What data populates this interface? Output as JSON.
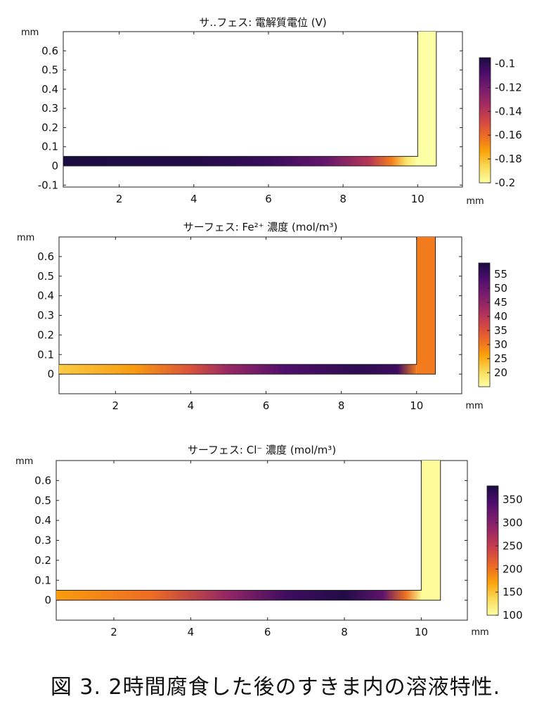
{
  "caption": "図 3. 2時間腐食した後のすきま内の溶液特性.",
  "chart_data": [
    {
      "type": "heatmap",
      "title": "サ‥フェス: 電解質電位 (V)",
      "xlabel": "mm",
      "ylabel": "mm",
      "xticks": [
        2,
        4,
        6,
        8,
        10
      ],
      "yticks": [
        -0.1,
        0,
        0.1,
        0.2,
        0.3,
        0.4,
        0.5,
        0.6
      ],
      "xlim": [
        0.5,
        11.2
      ],
      "ylim": [
        -0.11,
        0.7
      ],
      "colorbar": {
        "min": -0.2,
        "max": -0.095,
        "ticks": [
          -0.1,
          -0.12,
          -0.14,
          -0.16,
          -0.18,
          -0.2
        ]
      },
      "geometry": {
        "channel_x": [
          0.5,
          10.0
        ],
        "channel_y": [
          0,
          0.05
        ],
        "vertical_x": [
          10.0,
          10.5
        ],
        "vertical_y": [
          0,
          0.7
        ]
      },
      "channel_profile": [
        {
          "x": 0.5,
          "value": -0.095
        },
        {
          "x": 4.0,
          "value": -0.097
        },
        {
          "x": 6.0,
          "value": -0.103
        },
        {
          "x": 7.5,
          "value": -0.115
        },
        {
          "x": 8.7,
          "value": -0.14
        },
        {
          "x": 9.3,
          "value": -0.165
        },
        {
          "x": 9.7,
          "value": -0.19
        },
        {
          "x": 10.0,
          "value": -0.2
        }
      ],
      "vertical_value": -0.2
    },
    {
      "type": "heatmap",
      "title": "サーフェス: Fe²⁺ 濃度 (mol/m³)",
      "xlabel": "mm",
      "ylabel": "mm",
      "xticks": [
        2,
        4,
        6,
        8,
        10
      ],
      "yticks": [
        0,
        0.1,
        0.2,
        0.3,
        0.4,
        0.5,
        0.6
      ],
      "xlim": [
        0.5,
        11.2
      ],
      "ylim": [
        -0.1,
        0.7
      ],
      "colorbar": {
        "min": 15,
        "max": 59,
        "ticks": [
          55,
          50,
          45,
          40,
          35,
          30,
          25,
          20
        ]
      },
      "geometry": {
        "channel_x": [
          0.5,
          10.0
        ],
        "channel_y": [
          0,
          0.05
        ],
        "vertical_x": [
          10.0,
          10.5
        ],
        "vertical_y": [
          0,
          0.7
        ]
      },
      "channel_profile": [
        {
          "x": 0.5,
          "value": 22
        },
        {
          "x": 2.5,
          "value": 27
        },
        {
          "x": 4.0,
          "value": 35
        },
        {
          "x": 5.0,
          "value": 44
        },
        {
          "x": 6.5,
          "value": 53
        },
        {
          "x": 8.5,
          "value": 57
        },
        {
          "x": 9.5,
          "value": 55
        },
        {
          "x": 10.0,
          "value": 30
        }
      ],
      "vertical_value": 30
    },
    {
      "type": "heatmap",
      "title": "サーフェス: Cl⁻ 濃度 (mol/m³)",
      "xlabel": "mm",
      "ylabel": "mm",
      "xticks": [
        2,
        4,
        6,
        8,
        10
      ],
      "yticks": [
        0,
        0.1,
        0.2,
        0.3,
        0.4,
        0.5,
        0.6
      ],
      "xlim": [
        0.5,
        11.2
      ],
      "ylim": [
        -0.1,
        0.7
      ],
      "colorbar": {
        "min": 100,
        "max": 380,
        "ticks": [
          350,
          300,
          250,
          200,
          150,
          100
        ]
      },
      "geometry": {
        "channel_x": [
          0.5,
          10.0
        ],
        "channel_y": [
          0,
          0.05
        ],
        "vertical_x": [
          10.0,
          10.5
        ],
        "vertical_y": [
          0,
          0.7
        ]
      },
      "channel_profile": [
        {
          "x": 0.5,
          "value": 175
        },
        {
          "x": 3.0,
          "value": 205
        },
        {
          "x": 5.0,
          "value": 290
        },
        {
          "x": 6.5,
          "value": 355
        },
        {
          "x": 8.0,
          "value": 375
        },
        {
          "x": 9.0,
          "value": 330
        },
        {
          "x": 9.6,
          "value": 200
        },
        {
          "x": 10.0,
          "value": 110
        }
      ],
      "vertical_value": 105
    }
  ]
}
